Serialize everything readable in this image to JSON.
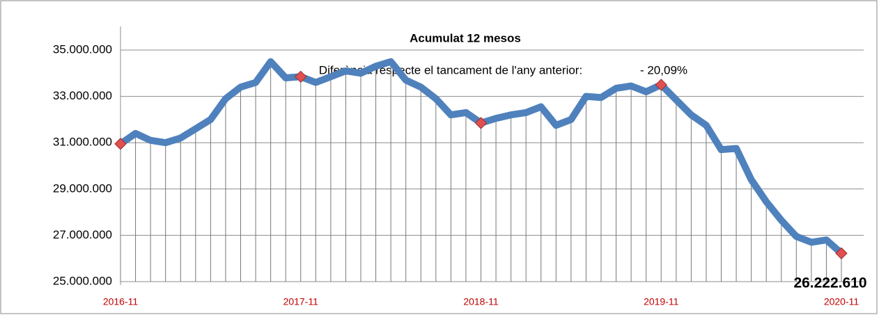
{
  "chart_data": {
    "type": "line",
    "title": "Acumulat 12 mesos",
    "subtitle": "Diferència respecte el tancament de l'any anterior:",
    "annotation": "- 20,09%",
    "categories": [
      "2016-11",
      null,
      null,
      null,
      null,
      null,
      null,
      null,
      null,
      null,
      null,
      null,
      "2017-11",
      null,
      null,
      null,
      null,
      null,
      null,
      null,
      null,
      null,
      null,
      null,
      "2018-11",
      null,
      null,
      null,
      null,
      null,
      null,
      null,
      null,
      null,
      null,
      null,
      "2019-11",
      null,
      null,
      null,
      null,
      null,
      null,
      null,
      null,
      null,
      null,
      null,
      "2020-11"
    ],
    "values": [
      30950000,
      31400000,
      31100000,
      31000000,
      31200000,
      31600000,
      32000000,
      32900000,
      33400000,
      33600000,
      34500000,
      33800000,
      33850000,
      33600000,
      33850000,
      34100000,
      34000000,
      34300000,
      34500000,
      33700000,
      33400000,
      32900000,
      32200000,
      32300000,
      31850000,
      32050000,
      32200000,
      32300000,
      32550000,
      31750000,
      32000000,
      33000000,
      32950000,
      33350000,
      33450000,
      33200000,
      33500000,
      32850000,
      32200000,
      31750000,
      30700000,
      30750000,
      29400000,
      28450000,
      27650000,
      26950000,
      26700000,
      26800000,
      26222610
    ],
    "value_labels": [
      null,
      null,
      null,
      null,
      null,
      null,
      null,
      null,
      null,
      null,
      null,
      null,
      null,
      null,
      null,
      null,
      null,
      null,
      null,
      null,
      null,
      null,
      null,
      null,
      null,
      null,
      null,
      null,
      null,
      null,
      null,
      null,
      null,
      null,
      null,
      null,
      null,
      null,
      null,
      null,
      null,
      null,
      null,
      null,
      null,
      null,
      null,
      null,
      "26.222.610"
    ],
    "color": "#4f81bd",
    "marker_every": 12,
    "marker_color": "#e05050",
    "drop_lines": true,
    "grid": true,
    "ylim": [
      25000000,
      35000000
    ],
    "yticks": [
      {
        "value": 25000000,
        "label": "25.000.000"
      },
      {
        "value": 27000000,
        "label": "27.000.000"
      },
      {
        "value": 29000000,
        "label": "29.000.000"
      },
      {
        "value": 31000000,
        "label": "31.000.000"
      },
      {
        "value": 33000000,
        "label": "33.000.000"
      },
      {
        "value": 35000000,
        "label": "35.000.000"
      }
    ]
  }
}
